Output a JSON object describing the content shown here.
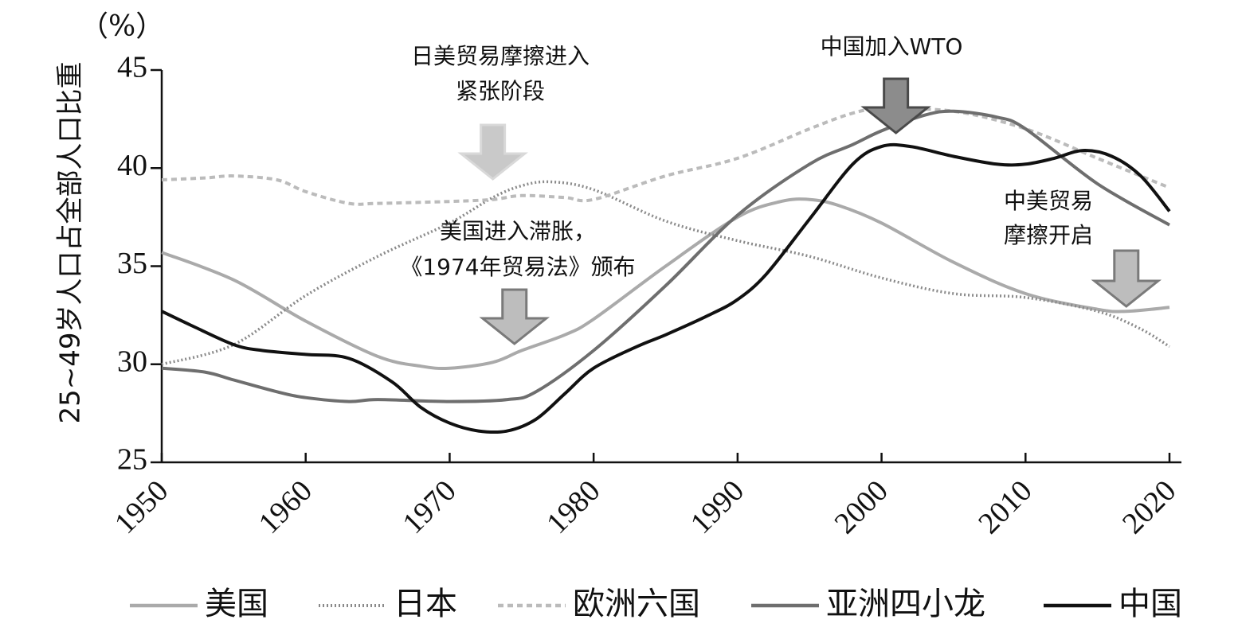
{
  "chart_data": {
    "type": "line",
    "title": "",
    "xlabel": "",
    "ylabel": "25~49岁人口占全部人口比重",
    "unit": "（%）",
    "xlim": [
      1950,
      2020
    ],
    "ylim": [
      25,
      45
    ],
    "xticks": [
      1950,
      1960,
      1970,
      1980,
      1990,
      2000,
      2010,
      2020
    ],
    "yticks": [
      25,
      30,
      35,
      40,
      45
    ],
    "grid": false,
    "legend_position": "bottom",
    "series": [
      {
        "name": "美国",
        "color": "#aaaaaa",
        "dash": "solid",
        "x": [
          1950,
          1955,
          1960,
          1965,
          1968,
          1970,
          1973,
          1975,
          1978,
          1980,
          1985,
          1990,
          1993,
          1995,
          1997,
          2000,
          2005,
          2010,
          2015,
          2017,
          2020
        ],
        "y": [
          35.7,
          34.3,
          32.2,
          30.4,
          29.9,
          29.8,
          30.1,
          30.7,
          31.5,
          32.3,
          35.0,
          37.5,
          38.3,
          38.4,
          38.1,
          37.2,
          35.2,
          33.6,
          32.8,
          32.7,
          32.9
        ]
      },
      {
        "name": "日本",
        "color": "#8a8a8a",
        "dash": "dotted",
        "x": [
          1950,
          1955,
          1960,
          1965,
          1970,
          1973,
          1975,
          1977,
          1980,
          1985,
          1990,
          1995,
          2000,
          2005,
          2010,
          2015,
          2018,
          2020
        ],
        "y": [
          30.0,
          31.0,
          33.5,
          35.5,
          37.2,
          38.5,
          39.1,
          39.3,
          38.9,
          37.3,
          36.3,
          35.5,
          34.4,
          33.6,
          33.4,
          32.7,
          31.8,
          30.9
        ]
      },
      {
        "name": "欧洲六国",
        "color": "#bbbbbb",
        "dash": "dashed",
        "x": [
          1950,
          1953,
          1955,
          1958,
          1960,
          1963,
          1965,
          1970,
          1973,
          1975,
          1978,
          1980,
          1985,
          1990,
          1995,
          1998,
          2000,
          2005,
          2010,
          2015,
          2020
        ],
        "y": [
          39.4,
          39.5,
          39.6,
          39.4,
          38.8,
          38.2,
          38.2,
          38.3,
          38.4,
          38.6,
          38.5,
          38.4,
          39.6,
          40.5,
          42.0,
          42.8,
          43.0,
          42.9,
          42.0,
          40.5,
          39.0
        ]
      },
      {
        "name": "亚洲四小龙",
        "color": "#6e6e6e",
        "dash": "solid",
        "x": [
          1950,
          1953,
          1955,
          1958,
          1960,
          1963,
          1965,
          1970,
          1974,
          1976,
          1980,
          1985,
          1990,
          1995,
          1998,
          2000,
          2003,
          2005,
          2008,
          2010,
          2015,
          2020
        ],
        "y": [
          29.8,
          29.6,
          29.2,
          28.6,
          28.3,
          28.1,
          28.2,
          28.1,
          28.2,
          28.6,
          30.7,
          34.0,
          37.6,
          40.2,
          41.2,
          41.9,
          42.7,
          42.9,
          42.6,
          42.0,
          39.2,
          37.1
        ]
      },
      {
        "name": "中国",
        "color": "#111111",
        "dash": "solid",
        "x": [
          1950,
          1952,
          1955,
          1957,
          1960,
          1963,
          1966,
          1968,
          1970,
          1972,
          1974,
          1976,
          1978,
          1980,
          1983,
          1985,
          1988,
          1990,
          1992,
          1995,
          1998,
          2000,
          2002,
          2005,
          2008,
          2010,
          2012,
          2014,
          2016,
          2018,
          2020
        ],
        "y": [
          32.7,
          32.0,
          31.0,
          30.7,
          30.5,
          30.3,
          29.1,
          27.8,
          27.0,
          26.6,
          26.6,
          27.2,
          28.5,
          29.8,
          30.9,
          31.5,
          32.5,
          33.3,
          34.6,
          37.4,
          40.2,
          41.1,
          41.1,
          40.6,
          40.2,
          40.2,
          40.5,
          40.9,
          40.6,
          39.6,
          37.8
        ]
      }
    ],
    "annotations": [
      {
        "lines": [
          "日美贸易摩擦进入",
          "紧张阶段"
        ],
        "arrow_x": 1973,
        "style": "light"
      },
      {
        "lines": [
          "美国进入滞胀，",
          "《1974年贸易法》颁布"
        ],
        "arrow_x": 1974.5,
        "style": "medium"
      },
      {
        "lines": [
          "中国加入WTO"
        ],
        "arrow_x": 2001,
        "style": "dark"
      },
      {
        "lines": [
          "中美贸易",
          "摩擦开启"
        ],
        "arrow_x": 2017,
        "style": "medium"
      }
    ]
  }
}
